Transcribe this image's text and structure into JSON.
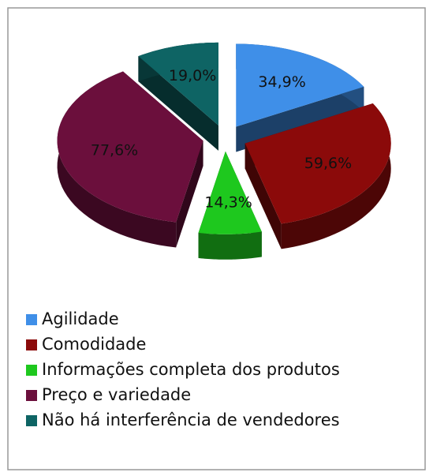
{
  "chart_data": {
    "type": "pie3d",
    "categories": [
      "Agilidade",
      "Comodidade",
      "Informações completa dos produtos",
      "Preço e variedade",
      "Não há interferência de vendedores"
    ],
    "values": [
      34.9,
      59.6,
      14.3,
      77.6,
      19.0
    ],
    "value_labels": [
      "34,9%",
      "59,6%",
      "14,3%",
      "77,6%",
      "19,0%"
    ],
    "colors": [
      "#3f8fe8",
      "#8b0a0a",
      "#1ec81e",
      "#6b0f3c",
      "#0e6464"
    ],
    "legend": "bottom"
  }
}
